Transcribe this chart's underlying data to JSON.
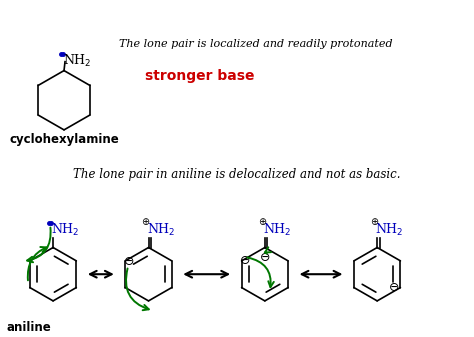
{
  "bg_color": "#ffffff",
  "text_italic_1": "The lone pair is localized and readily protonated",
  "text_bold_red": "stronger base",
  "text_italic_2": "The lone pair in aniline is delocalized and not as basic.",
  "label_cyclo": "cyclohexylamine",
  "label_aniline": "aniline",
  "black": "#000000",
  "blue": "#0000bb",
  "red": "#cc0000",
  "green": "#007700",
  "fig_w": 4.74,
  "fig_h": 3.37,
  "dpi": 100
}
